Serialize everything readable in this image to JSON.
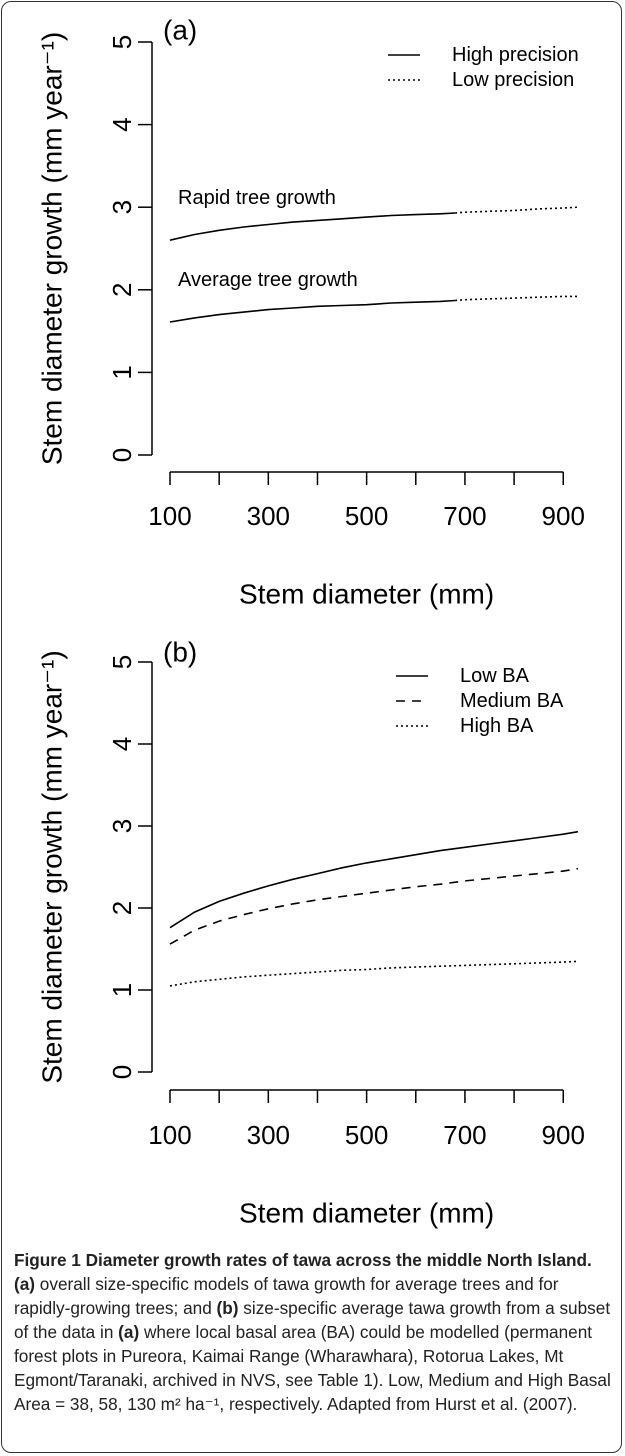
{
  "chart_data": [
    {
      "type": "line",
      "panel_label": "(a)",
      "xlabel": "Stem diameter (mm)",
      "ylabel": "Stem diameter growth (mm year⁻¹)",
      "xlim": [
        100,
        930
      ],
      "ylim": [
        0,
        5
      ],
      "xticks": [
        100,
        200,
        300,
        400,
        500,
        600,
        700,
        800,
        900
      ],
      "xtick_labels": [
        "100",
        "300",
        "500",
        "700",
        "900"
      ],
      "xtick_label_values": [
        100,
        300,
        500,
        700,
        900
      ],
      "yticks": [
        0,
        1,
        2,
        3,
        4,
        5
      ],
      "ytick_labels": [
        "0",
        "1",
        "2",
        "3",
        "4",
        "5"
      ],
      "legend": {
        "position": "top-right",
        "entries": [
          {
            "label": "High precision",
            "style": "solid"
          },
          {
            "label": "Low precision",
            "style": "dotted"
          }
        ]
      },
      "series": [
        {
          "annotation": "Rapid tree growth",
          "segments": [
            {
              "style": "solid",
              "x": [
                100,
                150,
                200,
                250,
                300,
                350,
                400,
                450,
                500,
                550,
                600,
                650,
                680
              ],
              "y": [
                2.6,
                2.67,
                2.72,
                2.76,
                2.79,
                2.82,
                2.84,
                2.86,
                2.88,
                2.9,
                2.91,
                2.92,
                2.93
              ]
            },
            {
              "style": "dotted",
              "x": [
                680,
                700,
                750,
                800,
                850,
                900,
                930
              ],
              "y": [
                2.93,
                2.94,
                2.95,
                2.96,
                2.98,
                2.99,
                3.0
              ]
            }
          ]
        },
        {
          "annotation": "Average tree growth",
          "segments": [
            {
              "style": "solid",
              "x": [
                100,
                150,
                200,
                250,
                300,
                350,
                400,
                450,
                500,
                550,
                600,
                650,
                680
              ],
              "y": [
                1.61,
                1.66,
                1.7,
                1.73,
                1.76,
                1.78,
                1.8,
                1.81,
                1.82,
                1.84,
                1.85,
                1.86,
                1.87
              ]
            },
            {
              "style": "dotted",
              "x": [
                680,
                700,
                750,
                800,
                850,
                900,
                930
              ],
              "y": [
                1.87,
                1.88,
                1.89,
                1.9,
                1.91,
                1.92,
                1.92
              ]
            }
          ]
        }
      ]
    },
    {
      "type": "line",
      "panel_label": "(b)",
      "xlabel": "Stem diameter (mm)",
      "ylabel": "Stem diameter growth (mm year⁻¹)",
      "xlim": [
        100,
        930
      ],
      "ylim": [
        0,
        5
      ],
      "xticks": [
        100,
        200,
        300,
        400,
        500,
        600,
        700,
        800,
        900
      ],
      "xtick_labels": [
        "100",
        "300",
        "500",
        "700",
        "900"
      ],
      "xtick_label_values": [
        100,
        300,
        500,
        700,
        900
      ],
      "yticks": [
        0,
        1,
        2,
        3,
        4,
        5
      ],
      "ytick_labels": [
        "0",
        "1",
        "2",
        "3",
        "4",
        "5"
      ],
      "legend": {
        "position": "top-right",
        "entries": [
          {
            "label": "Low BA",
            "style": "solid"
          },
          {
            "label": "Medium BA",
            "style": "dashed"
          },
          {
            "label": "High BA",
            "style": "dotted"
          }
        ]
      },
      "series": [
        {
          "name": "Low BA",
          "style": "solid",
          "x": [
            100,
            150,
            200,
            250,
            300,
            350,
            400,
            450,
            500,
            550,
            600,
            650,
            700,
            750,
            800,
            850,
            900,
            930
          ],
          "y": [
            1.76,
            1.95,
            2.08,
            2.18,
            2.27,
            2.35,
            2.42,
            2.49,
            2.55,
            2.6,
            2.65,
            2.7,
            2.74,
            2.78,
            2.82,
            2.86,
            2.9,
            2.93
          ]
        },
        {
          "name": "Medium BA",
          "style": "dashed",
          "x": [
            100,
            150,
            200,
            250,
            300,
            350,
            400,
            450,
            500,
            550,
            600,
            650,
            700,
            750,
            800,
            850,
            900,
            930
          ],
          "y": [
            1.56,
            1.73,
            1.84,
            1.92,
            1.99,
            2.05,
            2.1,
            2.14,
            2.18,
            2.22,
            2.26,
            2.29,
            2.33,
            2.36,
            2.39,
            2.42,
            2.45,
            2.48
          ]
        },
        {
          "name": "High BA",
          "style": "dotted",
          "x": [
            100,
            150,
            200,
            250,
            300,
            350,
            400,
            450,
            500,
            550,
            600,
            650,
            700,
            750,
            800,
            850,
            900,
            930
          ],
          "y": [
            1.05,
            1.1,
            1.13,
            1.16,
            1.18,
            1.2,
            1.22,
            1.24,
            1.25,
            1.27,
            1.28,
            1.29,
            1.3,
            1.31,
            1.32,
            1.33,
            1.34,
            1.35
          ]
        }
      ]
    }
  ],
  "caption": {
    "title": "Figure 1 Diameter growth rates of tawa across the middle North Island.",
    "label_a": "(a)",
    "text_a": " overall size-specific models of tawa growth for average trees and for rapidly-growing trees; and ",
    "label_b": "(b)",
    "text_b": " size-specific average tawa growth from a subset of the data in ",
    "label_a2": "(a)",
    "text_rest": " where local basal area (BA) could be modelled (permanent forest plots in Pureora, Kaimai Range (Wharawhara), Rotorua Lakes, Mt Egmont/Taranaki, archived in NVS, see Table 1). Low, Medium and High Basal Area = 38, 58, 130 m² ha⁻¹, respectively. Adapted from Hurst et al. (2007)."
  }
}
